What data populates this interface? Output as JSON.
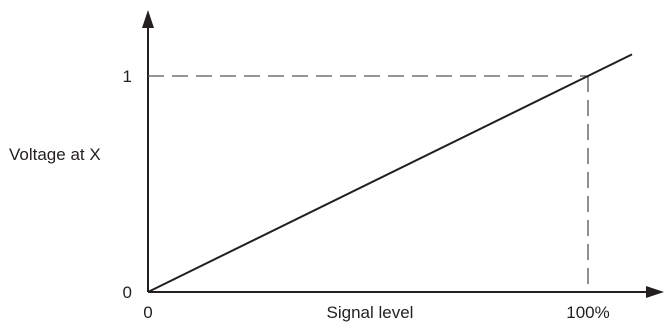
{
  "chart_data": {
    "type": "line",
    "title": "",
    "xlabel": "Signal level",
    "ylabel": "Voltage at X",
    "x_tick_labels": [
      {
        "x": 0,
        "label": "0"
      },
      {
        "x": 100,
        "label": "100%"
      }
    ],
    "y_tick_labels": [
      {
        "y": 0,
        "label": "0"
      },
      {
        "y": 1,
        "label": "1"
      }
    ],
    "series": [
      {
        "x": [
          0,
          100
        ],
        "y": [
          0,
          1
        ]
      }
    ],
    "reference_lines": [
      {
        "axis": "y",
        "value": 1,
        "from_x": 0,
        "to_x": 100,
        "style": "dashed"
      },
      {
        "axis": "x",
        "value": 100,
        "from_y": 0,
        "to_y": 1,
        "style": "dashed"
      }
    ],
    "line_extends_beyond_x": 110,
    "grid": false,
    "line_color": "#231f20",
    "dash_color": "#555555"
  }
}
